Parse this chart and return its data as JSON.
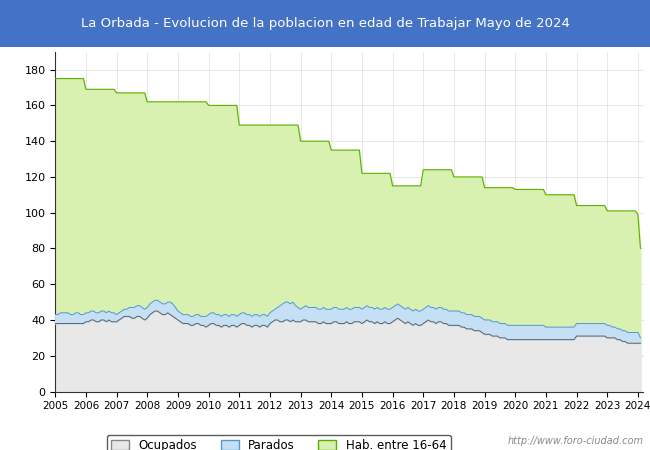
{
  "title": "La Orbada - Evolucion de la poblacion en edad de Trabajar Mayo de 2024",
  "title_bg": "#4472c4",
  "title_color": "white",
  "ylim": [
    0,
    190
  ],
  "yticks": [
    0,
    20,
    40,
    60,
    80,
    100,
    120,
    140,
    160,
    180
  ],
  "years_labels": [
    2005,
    2006,
    2007,
    2008,
    2009,
    2010,
    2011,
    2012,
    2013,
    2014,
    2015,
    2016,
    2017,
    2018,
    2019,
    2020,
    2021,
    2022,
    2023,
    2024
  ],
  "hab_16_64_steps": [
    175,
    175,
    175,
    175,
    175,
    175,
    175,
    175,
    175,
    175,
    175,
    175,
    169,
    169,
    169,
    169,
    169,
    169,
    169,
    169,
    169,
    169,
    169,
    169,
    167,
    167,
    167,
    167,
    167,
    167,
    167,
    167,
    167,
    167,
    167,
    167,
    162,
    162,
    162,
    162,
    162,
    162,
    162,
    162,
    162,
    162,
    162,
    162,
    162,
    162,
    162,
    162,
    162,
    162,
    162,
    162,
    162,
    162,
    162,
    162,
    160,
    160,
    160,
    160,
    160,
    160,
    160,
    160,
    160,
    160,
    160,
    160,
    149,
    149,
    149,
    149,
    149,
    149,
    149,
    149,
    149,
    149,
    149,
    149,
    149,
    149,
    149,
    149,
    149,
    149,
    149,
    149,
    149,
    149,
    149,
    149,
    140,
    140,
    140,
    140,
    140,
    140,
    140,
    140,
    140,
    140,
    140,
    140,
    135,
    135,
    135,
    135,
    135,
    135,
    135,
    135,
    135,
    135,
    135,
    135,
    122,
    122,
    122,
    122,
    122,
    122,
    122,
    122,
    122,
    122,
    122,
    122,
    115,
    115,
    115,
    115,
    115,
    115,
    115,
    115,
    115,
    115,
    115,
    115,
    124,
    124,
    124,
    124,
    124,
    124,
    124,
    124,
    124,
    124,
    124,
    124,
    120,
    120,
    120,
    120,
    120,
    120,
    120,
    120,
    120,
    120,
    120,
    120,
    114,
    114,
    114,
    114,
    114,
    114,
    114,
    114,
    114,
    114,
    114,
    114,
    113,
    113,
    113,
    113,
    113,
    113,
    113,
    113,
    113,
    113,
    113,
    113,
    110,
    110,
    110,
    110,
    110,
    110,
    110,
    110,
    110,
    110,
    110,
    110,
    104,
    104,
    104,
    104,
    104,
    104,
    104,
    104,
    104,
    104,
    104,
    104,
    101,
    101,
    101,
    101,
    101,
    101,
    101,
    101,
    101,
    101,
    101,
    101,
    99,
    80
  ],
  "ocupados": [
    38,
    38,
    38,
    38,
    38,
    38,
    38,
    38,
    38,
    38,
    38,
    38,
    39,
    39,
    40,
    40,
    39,
    39,
    40,
    40,
    39,
    40,
    39,
    39,
    39,
    40,
    41,
    42,
    42,
    42,
    41,
    41,
    42,
    42,
    41,
    40,
    41,
    43,
    44,
    45,
    45,
    44,
    43,
    43,
    44,
    43,
    42,
    41,
    40,
    39,
    38,
    38,
    38,
    37,
    37,
    38,
    38,
    37,
    37,
    36,
    37,
    38,
    38,
    37,
    37,
    36,
    37,
    37,
    36,
    37,
    37,
    36,
    37,
    38,
    38,
    37,
    37,
    36,
    37,
    37,
    36,
    37,
    37,
    36,
    38,
    39,
    40,
    40,
    39,
    39,
    40,
    40,
    39,
    40,
    39,
    39,
    39,
    40,
    40,
    39,
    39,
    39,
    39,
    38,
    38,
    39,
    38,
    38,
    38,
    39,
    39,
    38,
    38,
    38,
    39,
    38,
    38,
    39,
    39,
    39,
    38,
    39,
    40,
    39,
    39,
    38,
    39,
    38,
    38,
    39,
    38,
    38,
    39,
    40,
    41,
    40,
    39,
    38,
    39,
    38,
    37,
    38,
    37,
    37,
    38,
    39,
    40,
    39,
    39,
    38,
    39,
    39,
    38,
    38,
    37,
    37,
    37,
    37,
    37,
    36,
    36,
    35,
    35,
    35,
    34,
    34,
    34,
    33,
    32,
    32,
    32,
    31,
    31,
    31,
    30,
    30,
    30,
    29,
    29,
    29,
    29,
    29,
    29,
    29,
    29,
    29,
    29,
    29,
    29,
    29,
    29,
    29,
    29,
    29,
    29,
    29,
    29,
    29,
    29,
    29,
    29,
    29,
    29,
    29,
    31,
    31,
    31,
    31,
    31,
    31,
    31,
    31,
    31,
    31,
    31,
    31,
    30,
    30,
    30,
    30,
    29,
    29,
    28,
    28,
    27,
    27,
    27,
    27,
    27,
    27
  ],
  "parados_top": [
    43,
    43,
    44,
    44,
    44,
    44,
    43,
    43,
    44,
    44,
    43,
    43,
    44,
    44,
    45,
    45,
    44,
    44,
    45,
    45,
    44,
    45,
    44,
    44,
    43,
    44,
    45,
    46,
    46,
    47,
    47,
    47,
    48,
    48,
    47,
    46,
    47,
    49,
    50,
    51,
    51,
    50,
    49,
    49,
    50,
    50,
    49,
    47,
    45,
    44,
    43,
    43,
    43,
    42,
    42,
    43,
    43,
    42,
    42,
    42,
    43,
    44,
    44,
    43,
    43,
    42,
    43,
    43,
    42,
    43,
    43,
    42,
    43,
    44,
    44,
    43,
    43,
    42,
    43,
    43,
    42,
    43,
    43,
    42,
    44,
    45,
    46,
    47,
    48,
    49,
    50,
    50,
    49,
    50,
    48,
    47,
    46,
    47,
    48,
    47,
    47,
    47,
    47,
    46,
    46,
    47,
    46,
    46,
    46,
    47,
    47,
    46,
    46,
    46,
    47,
    46,
    46,
    47,
    47,
    47,
    46,
    47,
    48,
    47,
    47,
    46,
    47,
    46,
    46,
    47,
    46,
    46,
    47,
    48,
    49,
    48,
    47,
    46,
    47,
    46,
    45,
    46,
    45,
    45,
    46,
    47,
    48,
    47,
    47,
    46,
    47,
    47,
    46,
    46,
    45,
    45,
    45,
    45,
    45,
    44,
    44,
    43,
    43,
    43,
    42,
    42,
    42,
    41,
    40,
    40,
    40,
    39,
    39,
    39,
    38,
    38,
    38,
    37,
    37,
    37,
    37,
    37,
    37,
    37,
    37,
    37,
    37,
    37,
    37,
    37,
    37,
    37,
    36,
    36,
    36,
    36,
    36,
    36,
    36,
    36,
    36,
    36,
    36,
    36,
    38,
    38,
    38,
    38,
    38,
    38,
    38,
    38,
    38,
    38,
    38,
    38,
    37,
    37,
    36,
    36,
    35,
    35,
    34,
    34,
    33,
    33,
    33,
    33,
    33,
    30
  ],
  "hab_color": "#d8f0b0",
  "hab_line_color": "#5ab000",
  "ocupados_color": "#e8e8e8",
  "ocupados_line_color": "#606060",
  "parados_color": "#c5e0f5",
  "parados_line_color": "#5599cc",
  "watermark": "http://www.foro-ciudad.com",
  "legend_labels": [
    "Ocupados",
    "Parados",
    "Hab. entre 16-64"
  ],
  "n_months": 230
}
